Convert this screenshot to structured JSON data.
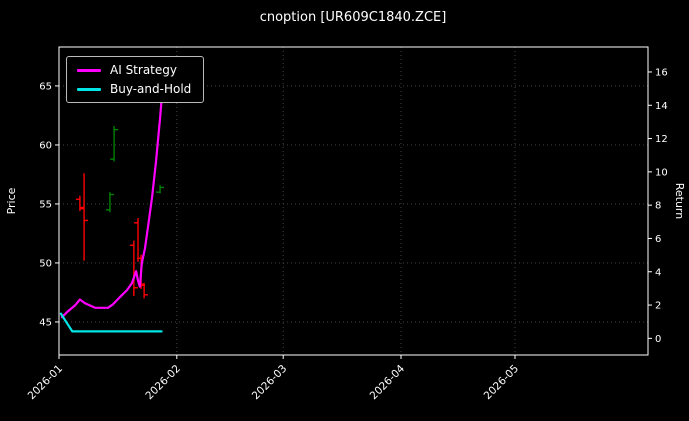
{
  "title": "cnoption [UR609C1840.ZCE]",
  "colors": {
    "background": "#000000",
    "text": "#ffffff",
    "grid": "#4d4d4d",
    "spine": "#ffffff",
    "up_candle": "#008000",
    "down_candle": "#ff0000"
  },
  "axes": {
    "left_label": "Price",
    "right_label": "Return"
  },
  "chart_data": {
    "type": "line",
    "title": "cnoption [UR609C1840.ZCE]",
    "xlabel": "",
    "ylabel_left": "Price",
    "ylabel_right": "Return",
    "legend_position": "upper left",
    "grid": "dotted",
    "x_ticks": [
      {
        "label": "2026-01",
        "day": 0
      },
      {
        "label": "2026-02",
        "day": 31
      },
      {
        "label": "2026-03",
        "day": 59
      },
      {
        "label": "2026-04",
        "day": 90
      },
      {
        "label": "2026-05",
        "day": 120
      }
    ],
    "xlim_days": [
      0,
      155
    ],
    "price_ylim": [
      42.2,
      68.3
    ],
    "price_ticks": [
      45,
      50,
      55,
      60,
      65
    ],
    "return_ylim": [
      -1.0,
      17.5
    ],
    "return_ticks": [
      0,
      2,
      4,
      6,
      8,
      10,
      12,
      14,
      16
    ],
    "series": [
      {
        "name": "AI Strategy",
        "axis": "price",
        "color": "#ff00ff",
        "points": [
          [
            0.8,
            45.4
          ],
          [
            2.0,
            45.8
          ],
          [
            4.2,
            46.4
          ],
          [
            5.5,
            46.9
          ],
          [
            6.8,
            46.6
          ],
          [
            9.5,
            46.2
          ],
          [
            12.9,
            46.2
          ],
          [
            14.2,
            46.5
          ],
          [
            16.0,
            47.1
          ],
          [
            17.9,
            47.7
          ],
          [
            19.2,
            48.3
          ],
          [
            20.3,
            49.3
          ],
          [
            20.8,
            48.5
          ],
          [
            21.3,
            48.0
          ],
          [
            21.8,
            50.0
          ],
          [
            22.6,
            51.2
          ],
          [
            23.4,
            53.0
          ],
          [
            24.5,
            55.6
          ],
          [
            25.5,
            58.5
          ],
          [
            26.6,
            62.3
          ],
          [
            27.4,
            65.4
          ]
        ]
      },
      {
        "name": "Buy-and-Hold",
        "axis": "price",
        "color": "#00e5e5",
        "points": [
          [
            0.5,
            45.7
          ],
          [
            3.5,
            44.2
          ],
          [
            27.0,
            44.2
          ]
        ]
      }
    ],
    "candles": [
      {
        "day": 5.5,
        "open": 55.4,
        "high": 55.7,
        "low": 54.4,
        "close": 54.6,
        "dir": "down"
      },
      {
        "day": 6.6,
        "open": 54.7,
        "high": 57.6,
        "low": 50.2,
        "close": 53.6,
        "dir": "down"
      },
      {
        "day": 13.4,
        "open": 54.5,
        "high": 56.0,
        "low": 54.3,
        "close": 55.8,
        "dir": "up"
      },
      {
        "day": 14.5,
        "open": 58.8,
        "high": 61.6,
        "low": 58.6,
        "close": 61.3,
        "dir": "up"
      },
      {
        "day": 19.7,
        "open": 51.5,
        "high": 51.9,
        "low": 47.2,
        "close": 47.9,
        "dir": "down"
      },
      {
        "day": 20.8,
        "open": 53.4,
        "high": 53.8,
        "low": 50.1,
        "close": 50.4,
        "dir": "down"
      },
      {
        "day": 21.6,
        "open": 50.4,
        "high": 50.7,
        "low": 47.8,
        "close": 48.1,
        "dir": "down"
      },
      {
        "day": 22.4,
        "open": 48.2,
        "high": 48.3,
        "low": 47.0,
        "close": 47.3,
        "dir": "down"
      },
      {
        "day": 26.6,
        "open": 56.0,
        "high": 56.6,
        "low": 55.9,
        "close": 56.4,
        "dir": "up"
      }
    ]
  }
}
